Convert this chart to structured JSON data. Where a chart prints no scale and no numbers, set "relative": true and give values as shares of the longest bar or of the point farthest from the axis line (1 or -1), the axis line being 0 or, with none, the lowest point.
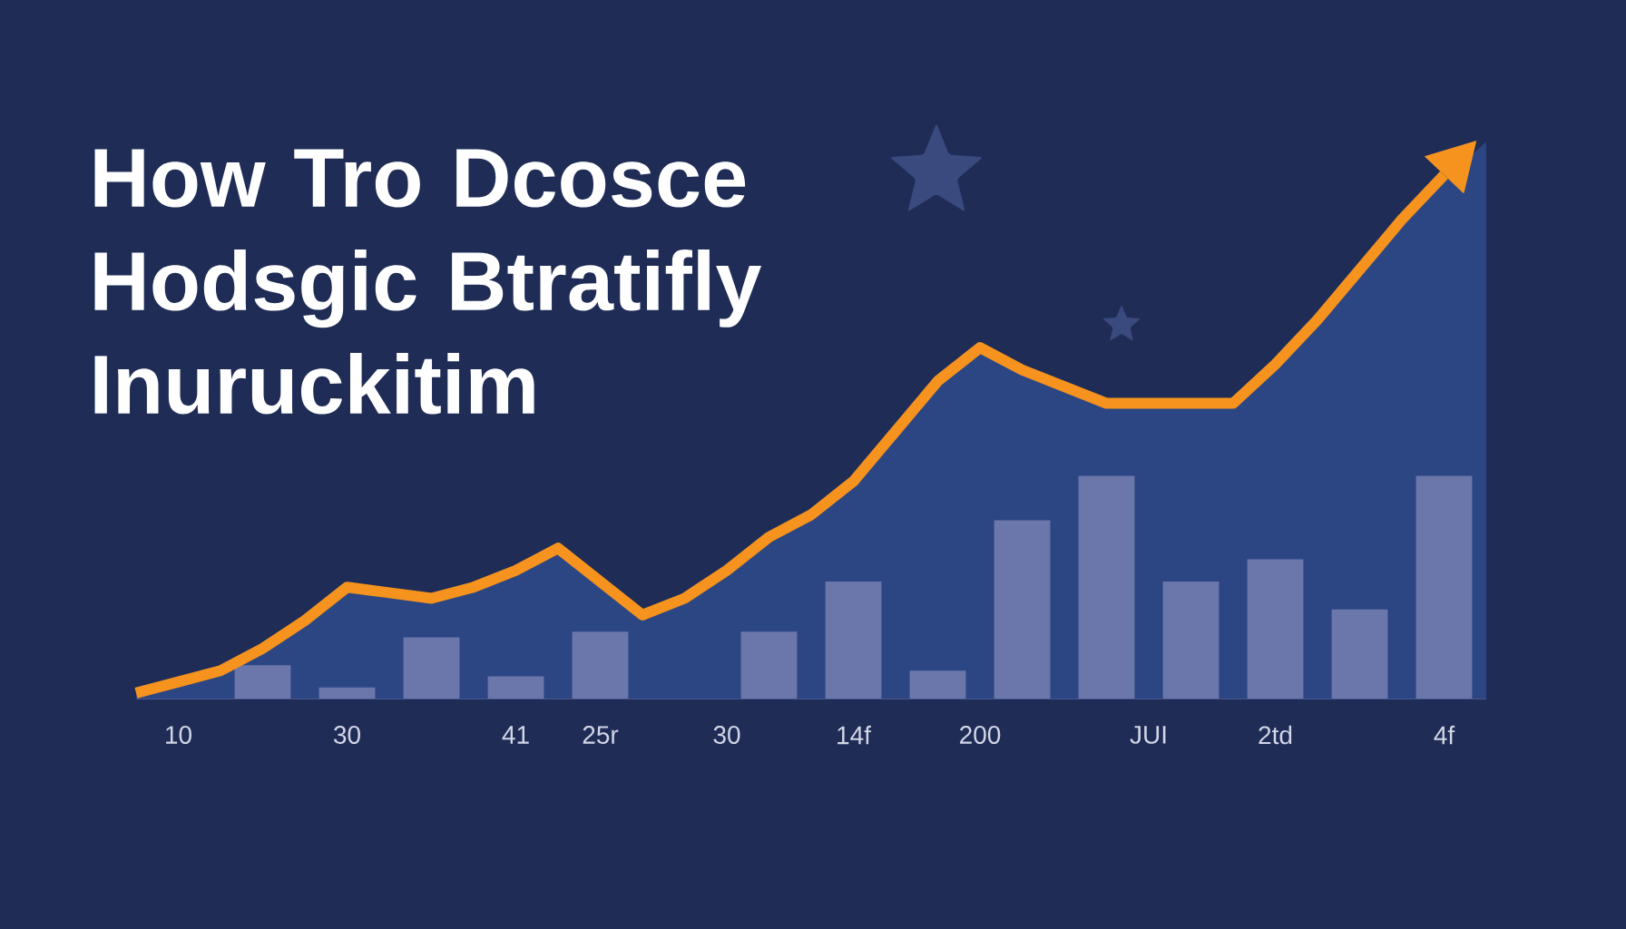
{
  "chart_data": {
    "type": "bar",
    "title": "How Tro Dcosce Hodsgic Btratifly Inuruckitim",
    "relative": true,
    "tick_labels": "x",
    "categories": [
      null,
      "10",
      null,
      null,
      null,
      "30",
      null,
      null,
      null,
      "41",
      null,
      "25r",
      null,
      null,
      "30",
      null,
      null,
      "14f",
      null,
      null,
      "200",
      null,
      null,
      null,
      "JUI",
      null,
      null,
      "2td",
      null,
      null,
      null,
      "4f",
      null
    ],
    "series": [
      {
        "type": "area",
        "color": "#2c4684",
        "values": [
          0.01,
          0.03,
          0.05,
          0.09,
          0.14,
          0.2,
          0.19,
          0.18,
          0.2,
          0.23,
          0.27,
          0.21,
          0.15,
          0.18,
          0.23,
          0.29,
          0.33,
          0.39,
          0.48,
          0.57,
          0.63,
          0.59,
          0.56,
          0.53,
          0.53,
          0.53,
          0.53,
          0.6,
          0.68,
          0.77,
          0.86,
          null,
          1
        ]
      },
      {
        "color": "#6b77aa",
        "values": [
          null,
          null,
          null,
          0.06,
          null,
          0.02,
          null,
          0.11,
          null,
          0.04,
          null,
          0.12,
          null,
          null,
          null,
          0.12,
          null,
          0.21,
          null,
          0.05,
          null,
          0.32,
          null,
          0.4,
          null,
          0.21,
          null,
          0.25,
          null,
          0.16,
          null,
          0.4,
          null
        ]
      },
      {
        "type": "line",
        "color": "#f5931e",
        "values": [
          0.01,
          0.03,
          0.05,
          0.09,
          0.14,
          0.2,
          0.19,
          0.18,
          0.2,
          0.23,
          0.27,
          0.21,
          0.15,
          0.18,
          0.23,
          0.29,
          0.33,
          0.39,
          0.48,
          0.57,
          0.63,
          0.59,
          0.56,
          0.53,
          0.53,
          0.53,
          0.53,
          0.6,
          0.68,
          0.77,
          0.86,
          0.94,
          null
        ]
      }
    ]
  }
}
